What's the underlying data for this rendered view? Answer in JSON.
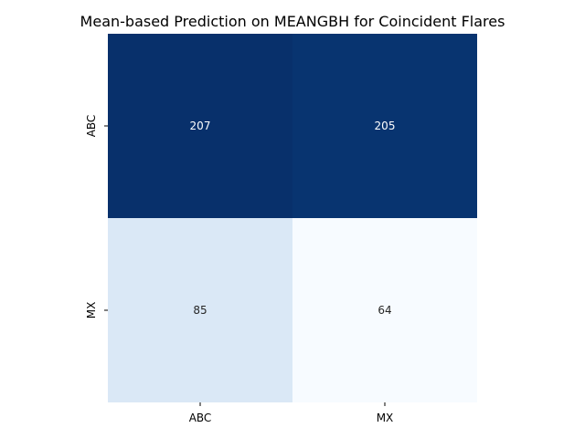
{
  "chart_data": {
    "type": "heatmap",
    "title": "Mean-based Prediction on MEANGBH for Coincident Flares",
    "xlabel": "",
    "ylabel": "",
    "x_categories": [
      "ABC",
      "MX"
    ],
    "y_categories": [
      "ABC",
      "MX"
    ],
    "values": [
      [
        207,
        205
      ],
      [
        85,
        64
      ]
    ],
    "colormap": "Blues",
    "vmin": 64,
    "vmax": 207,
    "colorbar": false,
    "grid": false,
    "colors": {
      "high": "#08306b",
      "low": "#f7fbff",
      "text_on_dark": "#ffffff",
      "text_on_light": "#262626"
    }
  }
}
